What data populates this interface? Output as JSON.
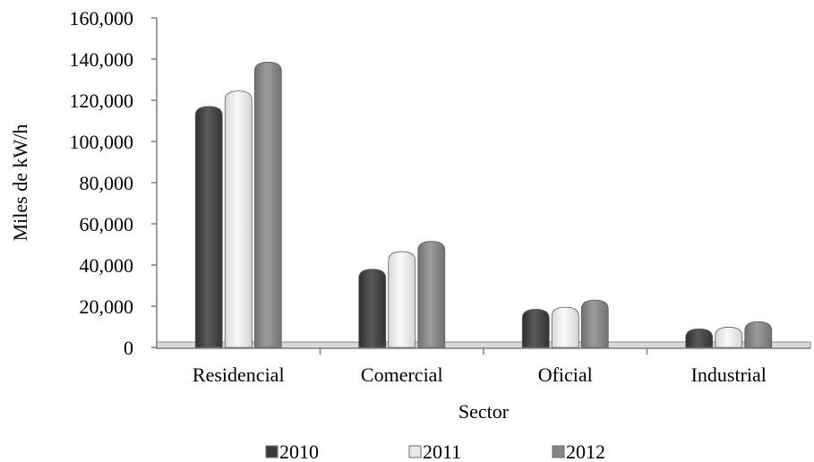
{
  "chart_data": {
    "type": "bar",
    "title": "",
    "xlabel": "Sector",
    "ylabel": "Miles de kW/h",
    "categories": [
      "Residencial",
      "Comercial",
      "Oficial",
      "Industrial"
    ],
    "series": [
      {
        "name": "2010",
        "values": [
          117000,
          38000,
          18500,
          9000
        ],
        "color": "#4a4a4a"
      },
      {
        "name": "2011",
        "values": [
          124500,
          46500,
          19500,
          9800
        ],
        "color": "#ebebeb"
      },
      {
        "name": "2012",
        "values": [
          138500,
          51500,
          23000,
          12500
        ],
        "color": "#8c8c8c"
      }
    ],
    "ylim": [
      0,
      160000
    ],
    "yticks": [
      "0",
      "20,000",
      "40,000",
      "60,000",
      "80,000",
      "100,000",
      "120,000",
      "140,000",
      "160,000"
    ],
    "grid": false,
    "legend_position": "bottom"
  }
}
